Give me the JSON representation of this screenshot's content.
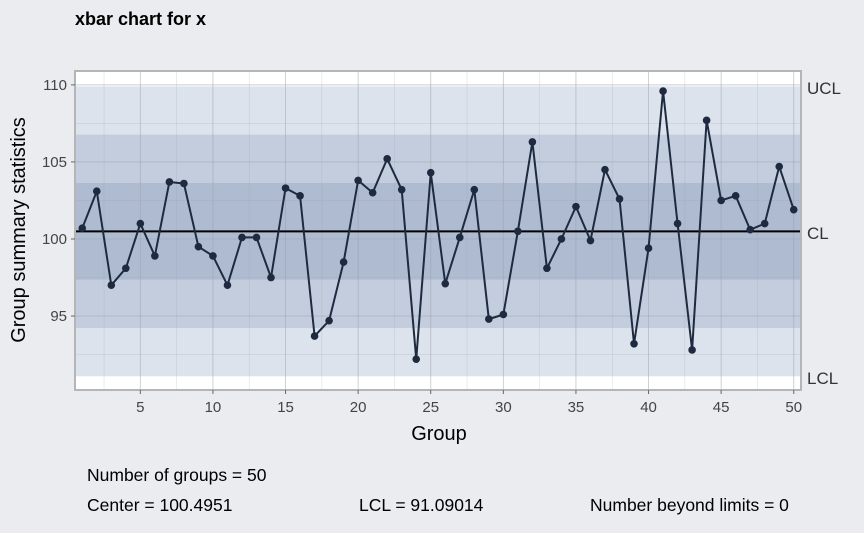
{
  "chart_data": {
    "type": "line",
    "title": "xbar chart for x",
    "xlabel": "Group",
    "ylabel": "Group summary statistics",
    "xlim": [
      0.5,
      50.5
    ],
    "ylim": [
      90.2,
      110.9
    ],
    "x_ticks": [
      5,
      10,
      15,
      20,
      25,
      30,
      35,
      40,
      45,
      50
    ],
    "y_ticks": [
      95,
      100,
      105,
      110
    ],
    "center_line": 100.4951,
    "ucl": 109.9,
    "lcl": 91.09014,
    "sigma_bands": {
      "one_sigma": [
        97.36,
        103.63
      ],
      "two_sigma": [
        94.22,
        106.77
      ],
      "three_sigma": [
        91.09014,
        109.9
      ]
    },
    "limit_labels": {
      "ucl": "UCL",
      "cl": "CL",
      "lcl": "LCL"
    },
    "grid": true,
    "x": [
      1,
      2,
      3,
      4,
      5,
      6,
      7,
      8,
      9,
      10,
      11,
      12,
      13,
      14,
      15,
      16,
      17,
      18,
      19,
      20,
      21,
      22,
      23,
      24,
      25,
      26,
      27,
      28,
      29,
      30,
      31,
      32,
      33,
      34,
      35,
      36,
      37,
      38,
      39,
      40,
      41,
      42,
      43,
      44,
      45,
      46,
      47,
      48,
      49,
      50
    ],
    "values": [
      100.7,
      103.1,
      97.0,
      98.1,
      101.0,
      98.9,
      103.7,
      103.6,
      99.5,
      98.9,
      97.0,
      100.1,
      100.1,
      97.5,
      103.3,
      102.8,
      93.7,
      94.7,
      98.5,
      103.8,
      103.0,
      105.2,
      103.2,
      92.2,
      104.3,
      97.1,
      100.1,
      103.2,
      94.8,
      95.1,
      100.5,
      106.3,
      98.1,
      100.0,
      102.1,
      99.9,
      104.5,
      102.6,
      93.2,
      99.4,
      109.6,
      101.0,
      92.8,
      107.7,
      102.5,
      102.8,
      100.6,
      101.0,
      104.7,
      101.9
    ]
  },
  "stats": {
    "groups": "Number of groups = 50",
    "center": "Center = 100.4951",
    "lcl": "LCL = 91.09014",
    "beyond": "Number beyond limits = 0"
  },
  "colors": {
    "background": "#ebecf0",
    "panel": "#ffffff",
    "band_outer": "#dde3ec",
    "band_mid": "#c3cddd",
    "band_inner": "#aebbd1",
    "line": "#1e2a3f",
    "center_line": "#000000",
    "grid": "#9aa3ad",
    "panel_border": "#b5b5b5"
  }
}
